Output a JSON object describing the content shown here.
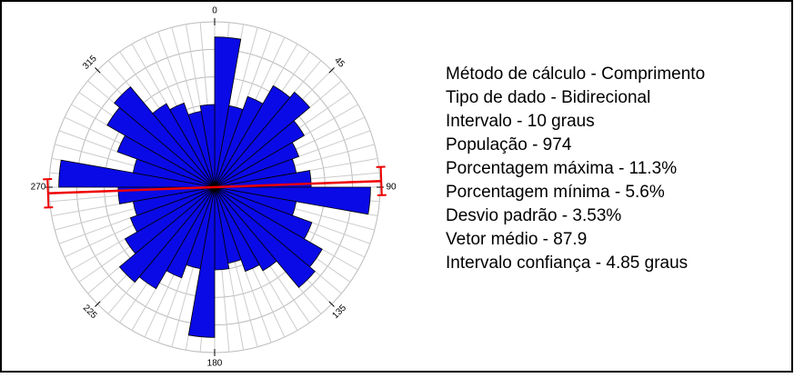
{
  "chart_data": {
    "type": "rose",
    "sector_width": 10,
    "values": [
      10.9,
      6.0,
      7.0,
      8.5,
      9.0,
      7.5,
      6.5,
      6.0,
      7.0,
      11.3,
      6.0,
      7.5,
      9.0,
      9.5,
      7.0,
      6.5,
      5.6,
      6.0,
      10.9,
      6.0,
      7.0,
      8.5,
      9.0,
      7.5,
      6.5,
      6.0,
      7.0,
      11.3,
      6.0,
      7.5,
      9.0,
      9.5,
      7.0,
      6.5,
      5.6,
      6.0
    ],
    "color": "#0a0ae6",
    "rlim": [
      0,
      12
    ],
    "rticks": [
      2,
      4,
      6,
      8,
      10,
      12
    ],
    "angle_ticks": [
      0,
      45,
      90,
      135,
      180,
      225,
      270,
      315
    ],
    "mean_vector": 87.9,
    "confidence": 4.85,
    "stats": [
      "Método de cálculo - Comprimento",
      "Tipo de dado - Bidirecional",
      "Intervalo - 10 graus",
      "População - 974",
      "Porcentagem máxima - 11.3%",
      "Porcentagem mínima - 5.6%",
      "Desvio padrão - 3.53%",
      "Vetor médio - 87.9",
      "Intervalo confiança - 4.85 graus"
    ]
  }
}
